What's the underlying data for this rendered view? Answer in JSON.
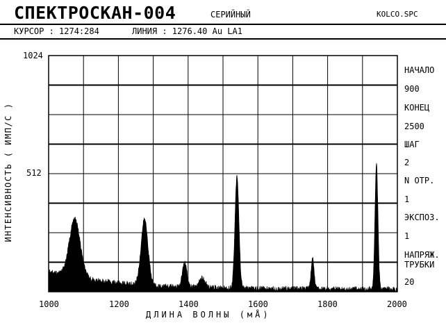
{
  "header": {
    "title": "СПЕКТРОСКАН-004",
    "mode": "СЕРИЙНЫЙ",
    "file": "KOLCO.SPC"
  },
  "status": {
    "cursor": "КУРСОР : 1274:284",
    "line": "ЛИНИЯ : 1276.40 Au LA1"
  },
  "params": [
    {
      "label": "НАЧАЛО",
      "value": "900"
    },
    {
      "label": "КОНЕЦ",
      "value": "2500"
    },
    {
      "label": "ШАГ",
      "value": "2"
    },
    {
      "label": "N ОТР.",
      "value": "1"
    },
    {
      "label": "ЭКСПОЗ.",
      "value": "1"
    },
    {
      "label": "НАПРЯЖ.",
      "value": ""
    },
    {
      "label": "ТРУБКИ",
      "value": "20"
    }
  ],
  "chart_data": {
    "type": "area",
    "xlabel": "ДЛИНА ВОЛНЫ (мÅ)",
    "ylabel": "ИНТЕНСИВНОСТЬ ( ИМП/С )",
    "xlim": [
      1000,
      2000
    ],
    "ylim": [
      0,
      1024
    ],
    "x_ticks": [
      1000,
      1200,
      1400,
      1600,
      1800,
      2000
    ],
    "y_tick_labels": [
      "1024",
      "512"
    ],
    "grid": true,
    "baseline": 80,
    "peaks": [
      {
        "x": 1075,
        "y": 250
      },
      {
        "x": 1275,
        "y": 284
      },
      {
        "x": 1390,
        "y": 105
      },
      {
        "x": 1440,
        "y": 40
      },
      {
        "x": 1540,
        "y": 490
      },
      {
        "x": 1757,
        "y": 135
      },
      {
        "x": 1940,
        "y": 545
      }
    ],
    "color": "#000000"
  }
}
